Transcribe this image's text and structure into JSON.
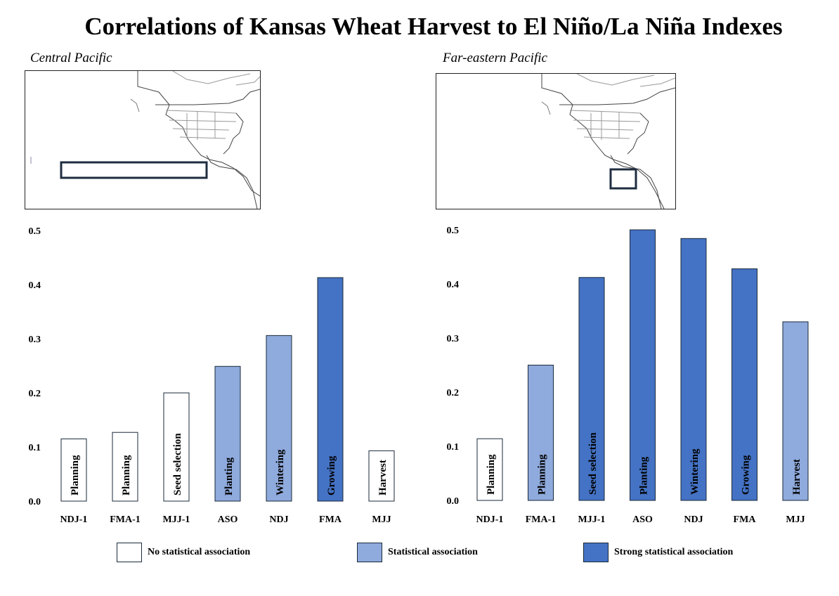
{
  "title": "Correlations of Kansas Wheat Harvest to El Niño/La Niña Indexes",
  "colors": {
    "none": "#ffffff",
    "statistical": "#8faadc",
    "strong": "#4472c4",
    "region_box": "#1f2d40"
  },
  "legend": [
    {
      "label": "No statistical association",
      "color_key": "none"
    },
    {
      "label": "Statistical association",
      "color_key": "statistical"
    },
    {
      "label": "Strong statistical association",
      "color_key": "strong"
    }
  ],
  "chart_data": [
    {
      "type": "bar",
      "title": "Central Pacific",
      "categories": [
        "NDJ-1",
        "FMA-1",
        "MJJ-1",
        "ASO",
        "NDJ",
        "FMA",
        "MJJ"
      ],
      "bar_labels": [
        "Planning",
        "Planning",
        "Seed selection",
        "Planting",
        "Wintering",
        "Growing",
        "Harvest"
      ],
      "values": [
        0.115,
        0.127,
        0.2,
        0.249,
        0.306,
        0.413,
        0.093
      ],
      "association": [
        "none",
        "none",
        "none",
        "statistical",
        "statistical",
        "strong",
        "none"
      ],
      "ylim": [
        0,
        0.5
      ],
      "yticks": [
        "0.0",
        "0.1",
        "0.2",
        "0.3",
        "0.4",
        "0.5"
      ],
      "grid": false
    },
    {
      "type": "bar",
      "title": "Far-eastern Pacific",
      "categories": [
        "NDJ-1",
        "FMA-1",
        "MJJ-1",
        "ASO",
        "NDJ",
        "FMA",
        "MJJ"
      ],
      "bar_labels": [
        "Planning",
        "Planning",
        "Seed selection",
        "Planting",
        "Wintering",
        "Growing",
        "Harvest"
      ],
      "values": [
        0.114,
        0.25,
        0.412,
        0.5,
        0.484,
        0.428,
        0.33
      ],
      "association": [
        "none",
        "statistical",
        "strong",
        "strong",
        "strong",
        "strong",
        "statistical"
      ],
      "ylim": [
        0,
        0.5
      ],
      "yticks": [
        "0.0",
        "0.1",
        "0.2",
        "0.3",
        "0.4",
        "0.5"
      ],
      "grid": false
    }
  ]
}
